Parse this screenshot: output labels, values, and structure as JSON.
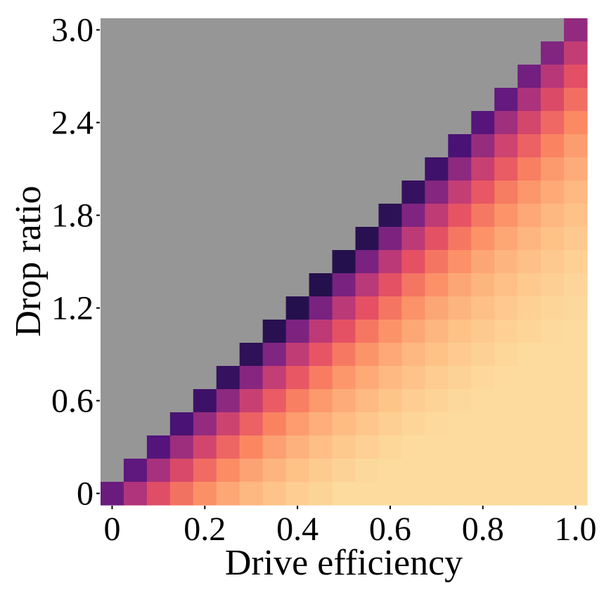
{
  "chart_data": {
    "type": "heatmap",
    "title": "",
    "xlabel": "Drive efficiency",
    "ylabel": "Drop ratio",
    "x_ticks": [
      "0",
      "0.2",
      "0.4",
      "0.6",
      "0.8",
      "1.0"
    ],
    "x_tick_values": [
      0,
      0.2,
      0.4,
      0.6,
      0.8,
      1.0
    ],
    "y_ticks": [
      "0",
      "0.6",
      "1.2",
      "1.8",
      "2.4",
      "3.0"
    ],
    "y_tick_values": [
      0,
      0.6,
      1.2,
      1.8,
      2.4,
      3.0
    ],
    "x_range": [
      0,
      1.0
    ],
    "y_range": [
      0,
      3.0
    ],
    "grid": {
      "columns": 21,
      "rows": 21,
      "x_step": 0.05,
      "y_step": 0.15
    },
    "colormap": "magma",
    "colorscale_range": [
      0,
      1
    ],
    "masked_color": "#969696",
    "masked_region": "cells below the diagonal (no value)",
    "background": "#ffffff"
  }
}
